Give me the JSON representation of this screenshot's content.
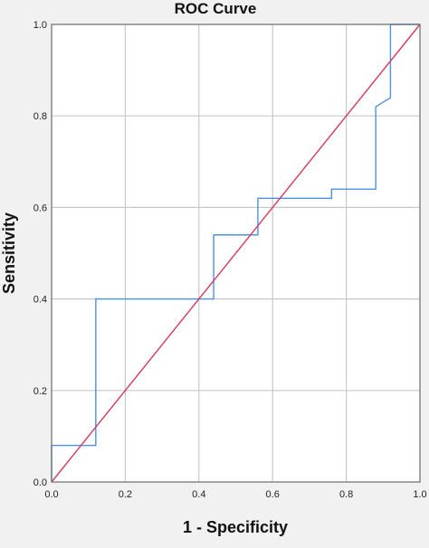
{
  "chart_data": {
    "type": "line",
    "title": "ROC Curve",
    "xlabel": "1 - Specificity",
    "ylabel": "Sensitivity",
    "xlim": [
      0,
      1
    ],
    "ylim": [
      0,
      1
    ],
    "xticks": [
      "0.0",
      "0.2",
      "0.4",
      "0.6",
      "0.8",
      "1.0"
    ],
    "yticks": [
      "0.0",
      "0.2",
      "0.4",
      "0.6",
      "0.8",
      "1.0"
    ],
    "grid": true,
    "series": [
      {
        "color": "#4f90d9",
        "step": true,
        "x": [
          0.0,
          0.0,
          0.12,
          0.12,
          0.44,
          0.44,
          0.56,
          0.56,
          0.76,
          0.76,
          0.88,
          0.88,
          0.92,
          0.92,
          1.0
        ],
        "y": [
          0.0,
          0.08,
          0.08,
          0.4,
          0.4,
          0.54,
          0.54,
          0.62,
          0.62,
          0.64,
          0.64,
          0.82,
          0.84,
          1.0,
          1.0
        ]
      },
      {
        "color": "#d63a5c",
        "x": [
          0.0,
          1.0
        ],
        "y": [
          0.0,
          1.0
        ]
      }
    ]
  }
}
